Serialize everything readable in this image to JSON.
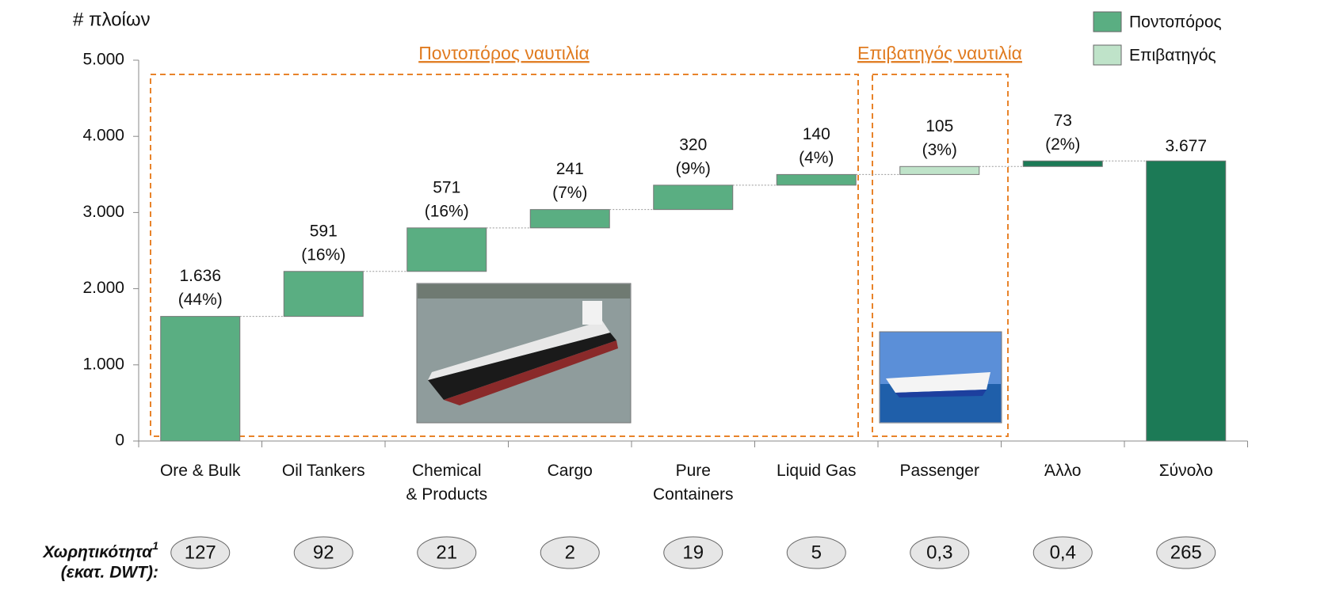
{
  "chart_data": {
    "type": "waterfall",
    "y_label": "# πλοίων",
    "categories": [
      "Ore & Bulk",
      "Oil Tankers",
      "Chemical\n& Products",
      "Cargo",
      "Pure\nContainers",
      "Liquid Gas",
      "Passenger",
      "Άλλο",
      "Σύνολο"
    ],
    "values": [
      1636,
      591,
      571,
      241,
      320,
      140,
      105,
      73,
      3677
    ],
    "value_labels": [
      "1.636",
      "591",
      "571",
      "241",
      "320",
      "140",
      "105",
      "73",
      "3.677"
    ],
    "shares": [
      44,
      16,
      16,
      7,
      9,
      4,
      3,
      2,
      null
    ],
    "share_labels": [
      "(44%)",
      "(16%)",
      "(16%)",
      "(7%)",
      "(9%)",
      "(4%)",
      "(3%)",
      "(2%)",
      null
    ],
    "colors": [
      "#5aae82",
      "#5aae82",
      "#5aae82",
      "#5aae82",
      "#5aae82",
      "#5aae82",
      "#bfe3c9",
      "#1c7a56",
      "#1c7a56"
    ],
    "legend": [
      {
        "name": "Ποντοπόρος",
        "color": "#5aae82"
      },
      {
        "name": "Επιβατηγός",
        "color": "#bfe3c9"
      }
    ],
    "ylim": [
      0,
      5000
    ],
    "yticks": [
      0,
      {
        "value": 1000,
        "label": "1.000"
      },
      {
        "value": 2000,
        "label": "2.000"
      },
      {
        "value": 3000,
        "label": "3.000"
      },
      {
        "value": 4000,
        "label": "4.000"
      },
      {
        "value": 5000,
        "label": "5.000"
      }
    ],
    "annotations": [
      "Ποντοπόρος ναυτιλία",
      "Επιβατηγός ναυτιλία"
    ],
    "capacity_title": "Χωρητικότητα",
    "capacity_footnote": "1",
    "capacity_unit": "(εκατ. DWT):",
    "capacity": [
      127,
      92,
      21,
      2,
      19,
      5,
      0.3,
      0.4,
      265
    ],
    "capacity_labels": [
      "127",
      "92",
      "21",
      "2",
      "19",
      "5",
      "0,3",
      "0,4",
      "265"
    ]
  }
}
